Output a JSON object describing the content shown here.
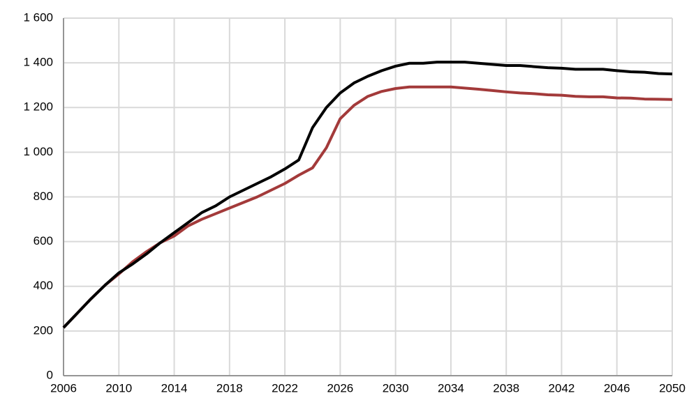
{
  "chart_data": {
    "type": "line",
    "x": [
      2006,
      2007,
      2008,
      2009,
      2010,
      2011,
      2012,
      2013,
      2014,
      2015,
      2016,
      2017,
      2018,
      2019,
      2020,
      2021,
      2022,
      2023,
      2024,
      2025,
      2026,
      2027,
      2028,
      2029,
      2030,
      2031,
      2032,
      2033,
      2034,
      2035,
      2036,
      2037,
      2038,
      2039,
      2040,
      2041,
      2042,
      2043,
      2044,
      2045,
      2046,
      2047,
      2048,
      2049,
      2050
    ],
    "series": [
      {
        "color": "#a33a3a",
        "values": [
          215,
          280,
          345,
          405,
          455,
          510,
          555,
          595,
          625,
          670,
          700,
          725,
          750,
          775,
          800,
          830,
          860,
          897,
          930,
          1020,
          1150,
          1210,
          1250,
          1272,
          1285,
          1292,
          1292,
          1292,
          1292,
          1287,
          1282,
          1276,
          1270,
          1265,
          1262,
          1257,
          1255,
          1250,
          1248,
          1248,
          1243,
          1242,
          1238,
          1237,
          1236
        ]
      },
      {
        "color": "#000000",
        "values": [
          215,
          280,
          345,
          405,
          460,
          500,
          545,
          595,
          640,
          685,
          730,
          760,
          800,
          830,
          860,
          890,
          925,
          965,
          1110,
          1200,
          1265,
          1310,
          1340,
          1365,
          1385,
          1398,
          1398,
          1403,
          1403,
          1403,
          1398,
          1393,
          1388,
          1388,
          1383,
          1378,
          1376,
          1371,
          1371,
          1371,
          1365,
          1360,
          1358,
          1352,
          1350
        ]
      }
    ],
    "xlim": [
      2006,
      2050
    ],
    "xticks": [
      2006,
      2010,
      2014,
      2018,
      2022,
      2026,
      2030,
      2034,
      2038,
      2042,
      2046,
      2050
    ],
    "ylim": [
      0,
      1600
    ],
    "yticks": [
      0,
      200,
      400,
      600,
      800,
      {
        "value": 1000,
        "label": "1 000"
      },
      {
        "value": 1200,
        "label": "1 200"
      },
      {
        "value": 1400,
        "label": "1 400"
      },
      {
        "value": 1600,
        "label": "1 600"
      }
    ],
    "grid": true
  }
}
